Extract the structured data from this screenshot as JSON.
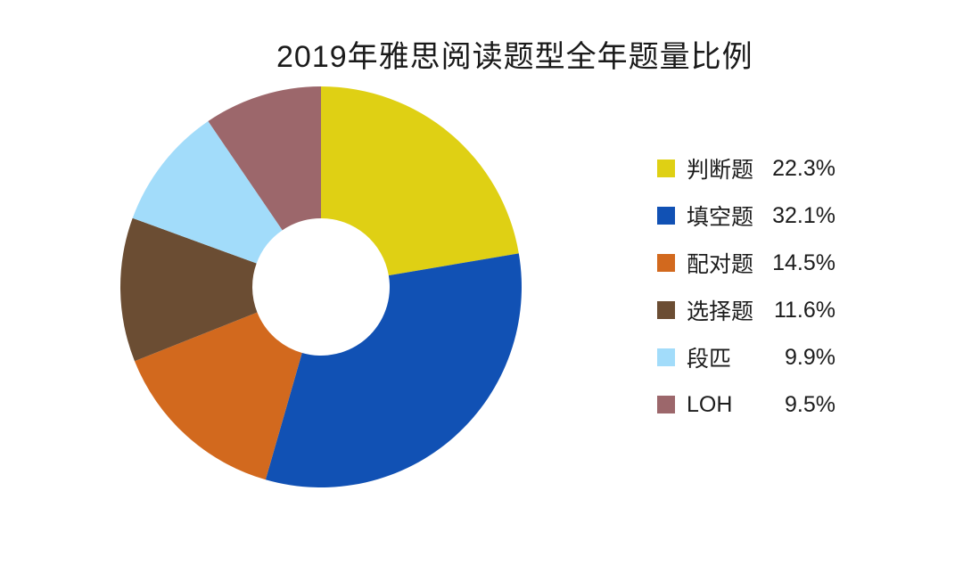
{
  "page": {
    "background_color": "#ffffff",
    "text_color": "#1a1a1a"
  },
  "chart_data": {
    "type": "pie",
    "title": "2019年雅思阅读题型全年题量比例",
    "donut": true,
    "donut_hole_ratio": 0.34,
    "start_angle_deg": 0,
    "direction": "clockwise",
    "legend_position": "right",
    "slices": [
      {
        "label": "判断题",
        "value": 22.3,
        "display": "22.3%",
        "color": "#DFD014"
      },
      {
        "label": "填空题",
        "value": 32.1,
        "display": "32.1%",
        "color": "#1151B4"
      },
      {
        "label": "配对题",
        "value": 14.5,
        "display": "14.5%",
        "color": "#D2691E"
      },
      {
        "label": "选择题",
        "value": 11.6,
        "display": "11.6%",
        "color": "#6B4D33"
      },
      {
        "label": "段匹",
        "value": 9.9,
        "display": "9.9%",
        "color": "#A2DCFA"
      },
      {
        "label": "LOH",
        "value": 9.5,
        "display": "9.5%",
        "color": "#9C676B"
      }
    ]
  }
}
